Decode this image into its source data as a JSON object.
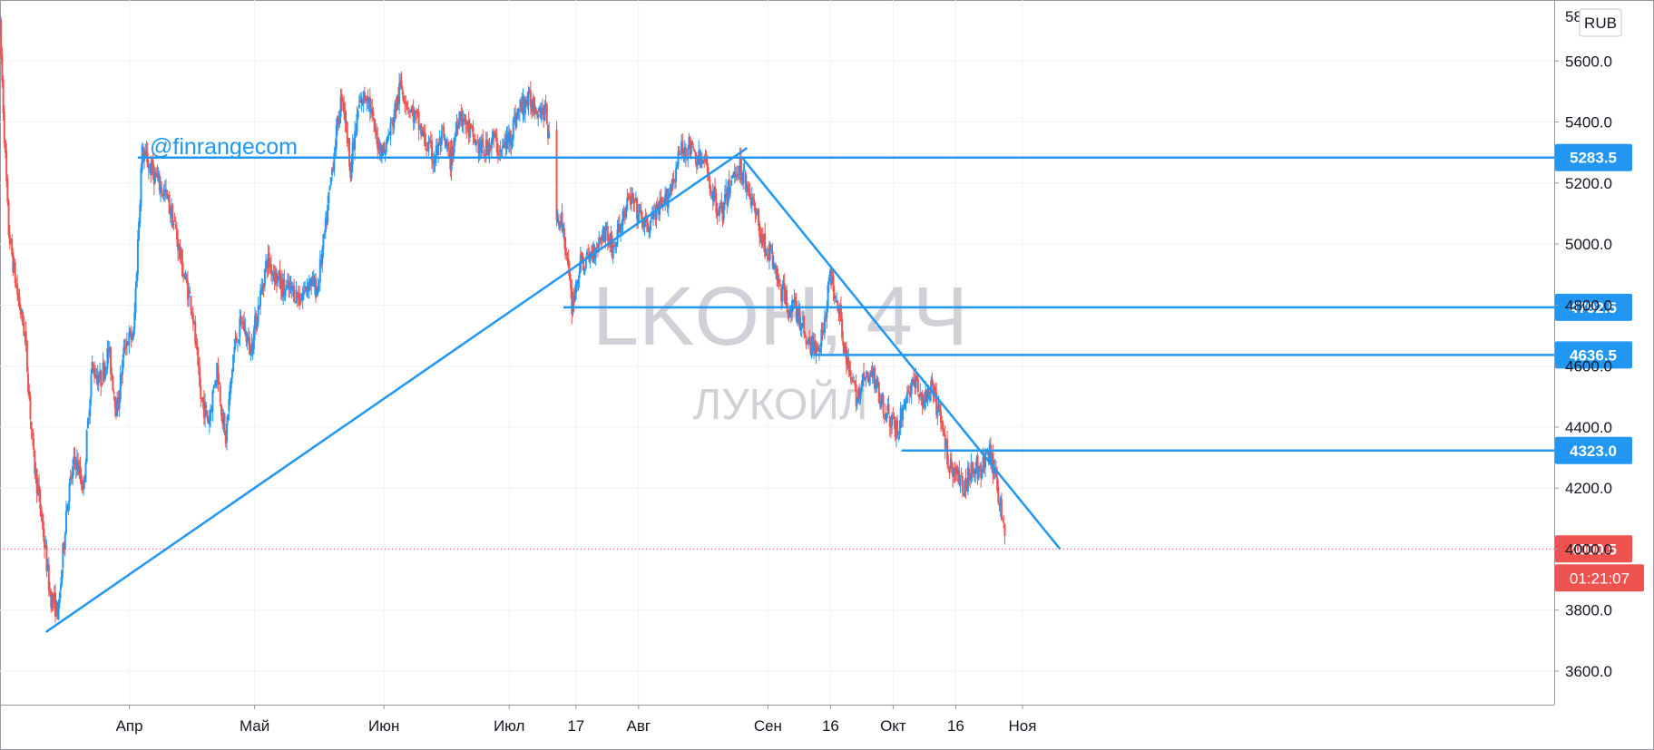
{
  "chart_data": {
    "type": "candlestick",
    "watermark": {
      "symbol": "LKOH, 4Ч",
      "name": "ЛУКОЙЛ"
    },
    "currency_label": "RUB",
    "author_label": "@finrangecom",
    "yaxis": {
      "ticks": [
        "3600.0",
        "3800.0",
        "4000.0",
        "4200.0",
        "4400.0",
        "4600.0",
        "4800.0",
        "5000.0",
        "5200.0",
        "5400.0",
        "5600.0"
      ],
      "top_partial": "58",
      "ylim": [
        3490,
        5800
      ]
    },
    "xaxis": {
      "ticks": [
        {
          "label": "Апр",
          "date": "2020-04-01"
        },
        {
          "label": "Май",
          "date": "2020-05-01"
        },
        {
          "label": "Июн",
          "date": "2020-06-01"
        },
        {
          "label": "Июл",
          "date": "2020-07-01"
        },
        {
          "label": "17",
          "date": "2020-07-17"
        },
        {
          "label": "Авг",
          "date": "2020-08-01"
        },
        {
          "label": "Сен",
          "date": "2020-09-01"
        },
        {
          "label": "16",
          "date": "2020-09-16"
        },
        {
          "label": "Окт",
          "date": "2020-10-01"
        },
        {
          "label": "16",
          "date": "2020-10-16"
        },
        {
          "label": "Ноя",
          "date": "2020-11-01"
        }
      ]
    },
    "last_price": {
      "value": 4000.5,
      "label": "4000.5",
      "countdown": "01:21:07"
    },
    "levels": [
      {
        "value": 5283.5,
        "label": "5283.5",
        "from": "2020-04-03"
      },
      {
        "value": 4792.5,
        "label": "4792.5",
        "from": "2020-07-14"
      },
      {
        "value": 4636.5,
        "label": "4636.5",
        "from": "2020-09-12"
      },
      {
        "value": 4323.0,
        "label": "4323.0",
        "from": "2020-10-03"
      }
    ],
    "trendlines": [
      {
        "name": "support",
        "from": {
          "date": "2020-03-12",
          "price": 3728
        },
        "to": {
          "date": "2020-08-27",
          "price": 5315
        }
      },
      {
        "name": "resistance",
        "from": {
          "date": "2020-08-26",
          "price": 5280
        },
        "to": {
          "date": "2020-11-10",
          "price": 4000
        }
      }
    ],
    "price_path": [
      [
        "2020-03-01",
        5700
      ],
      [
        "2020-03-03",
        5050
      ],
      [
        "2020-03-05",
        4850
      ],
      [
        "2020-03-07",
        4700
      ],
      [
        "2020-03-09",
        4300
      ],
      [
        "2020-03-11",
        4100
      ],
      [
        "2020-03-13",
        3850
      ],
      [
        "2020-03-15",
        3790
      ],
      [
        "2020-03-17",
        4150
      ],
      [
        "2020-03-19",
        4300
      ],
      [
        "2020-03-21",
        4200
      ],
      [
        "2020-03-23",
        4600
      ],
      [
        "2020-03-25",
        4550
      ],
      [
        "2020-03-27",
        4650
      ],
      [
        "2020-03-29",
        4450
      ],
      [
        "2020-03-31",
        4680
      ],
      [
        "2020-04-02",
        4700
      ],
      [
        "2020-04-03",
        5000
      ],
      [
        "2020-04-04",
        5300
      ],
      [
        "2020-04-06",
        5250
      ],
      [
        "2020-04-08",
        5200
      ],
      [
        "2020-04-10",
        5150
      ],
      [
        "2020-04-12",
        5050
      ],
      [
        "2020-04-14",
        4900
      ],
      [
        "2020-04-16",
        4800
      ],
      [
        "2020-04-18",
        4500
      ],
      [
        "2020-04-20",
        4420
      ],
      [
        "2020-04-22",
        4600
      ],
      [
        "2020-04-24",
        4350
      ],
      [
        "2020-04-26",
        4650
      ],
      [
        "2020-04-28",
        4750
      ],
      [
        "2020-04-30",
        4650
      ],
      [
        "2020-05-02",
        4800
      ],
      [
        "2020-05-04",
        4950
      ],
      [
        "2020-05-06",
        4900
      ],
      [
        "2020-05-08",
        4850
      ],
      [
        "2020-05-10",
        4850
      ],
      [
        "2020-05-12",
        4820
      ],
      [
        "2020-05-14",
        4880
      ],
      [
        "2020-05-16",
        4850
      ],
      [
        "2020-05-18",
        5050
      ],
      [
        "2020-05-20",
        5300
      ],
      [
        "2020-05-22",
        5500
      ],
      [
        "2020-05-24",
        5250
      ],
      [
        "2020-05-26",
        5450
      ],
      [
        "2020-05-28",
        5500
      ],
      [
        "2020-05-30",
        5350
      ],
      [
        "2020-06-01",
        5300
      ],
      [
        "2020-06-03",
        5400
      ],
      [
        "2020-06-05",
        5520
      ],
      [
        "2020-06-07",
        5450
      ],
      [
        "2020-06-09",
        5400
      ],
      [
        "2020-06-11",
        5330
      ],
      [
        "2020-06-13",
        5280
      ],
      [
        "2020-06-15",
        5350
      ],
      [
        "2020-06-17",
        5270
      ],
      [
        "2020-06-19",
        5440
      ],
      [
        "2020-06-21",
        5380
      ],
      [
        "2020-06-23",
        5330
      ],
      [
        "2020-06-25",
        5300
      ],
      [
        "2020-06-27",
        5350
      ],
      [
        "2020-06-29",
        5300
      ],
      [
        "2020-07-01",
        5350
      ],
      [
        "2020-07-03",
        5430
      ],
      [
        "2020-07-05",
        5470
      ],
      [
        "2020-07-07",
        5460
      ],
      [
        "2020-07-09",
        5440
      ],
      [
        "2020-07-10",
        5420
      ],
      [
        "2020-07-12",
        5120
      ],
      [
        "2020-07-14",
        5050
      ],
      [
        "2020-07-16",
        4800
      ],
      [
        "2020-07-18",
        4930
      ],
      [
        "2020-07-20",
        4950
      ],
      [
        "2020-07-22",
        5000
      ],
      [
        "2020-07-24",
        5050
      ],
      [
        "2020-07-26",
        4980
      ],
      [
        "2020-07-28",
        5080
      ],
      [
        "2020-07-30",
        5150
      ],
      [
        "2020-08-01",
        5100
      ],
      [
        "2020-08-03",
        5050
      ],
      [
        "2020-08-05",
        5100
      ],
      [
        "2020-08-07",
        5120
      ],
      [
        "2020-08-09",
        5200
      ],
      [
        "2020-08-11",
        5300
      ],
      [
        "2020-08-13",
        5320
      ],
      [
        "2020-08-15",
        5280
      ],
      [
        "2020-08-17",
        5260
      ],
      [
        "2020-08-19",
        5150
      ],
      [
        "2020-08-21",
        5100
      ],
      [
        "2020-08-23",
        5200
      ],
      [
        "2020-08-25",
        5260
      ],
      [
        "2020-08-27",
        5200
      ],
      [
        "2020-08-29",
        5100
      ],
      [
        "2020-08-31",
        5000
      ],
      [
        "2020-09-02",
        4950
      ],
      [
        "2020-09-04",
        4850
      ],
      [
        "2020-09-06",
        4800
      ],
      [
        "2020-09-08",
        4780
      ],
      [
        "2020-09-10",
        4700
      ],
      [
        "2020-09-12",
        4650
      ],
      [
        "2020-09-14",
        4700
      ],
      [
        "2020-09-16",
        4900
      ],
      [
        "2020-09-18",
        4800
      ],
      [
        "2020-09-20",
        4600
      ],
      [
        "2020-09-22",
        4500
      ],
      [
        "2020-09-24",
        4550
      ],
      [
        "2020-09-26",
        4570
      ],
      [
        "2020-09-28",
        4500
      ],
      [
        "2020-09-30",
        4430
      ],
      [
        "2020-10-02",
        4380
      ],
      [
        "2020-10-04",
        4500
      ],
      [
        "2020-10-06",
        4550
      ],
      [
        "2020-10-08",
        4480
      ],
      [
        "2020-10-10",
        4520
      ],
      [
        "2020-10-12",
        4450
      ],
      [
        "2020-10-14",
        4300
      ],
      [
        "2020-10-16",
        4250
      ],
      [
        "2020-10-18",
        4200
      ],
      [
        "2020-10-20",
        4280
      ],
      [
        "2020-10-22",
        4250
      ],
      [
        "2020-10-24",
        4320
      ],
      [
        "2020-10-26",
        4200
      ],
      [
        "2020-10-27",
        4120
      ],
      [
        "2020-10-28",
        4000
      ]
    ],
    "candle_colors": {
      "up": "#2196f3",
      "down": "#ef5350"
    },
    "line_color": "#2196f3",
    "last_price_color": "#ef5350",
    "grid": true
  }
}
